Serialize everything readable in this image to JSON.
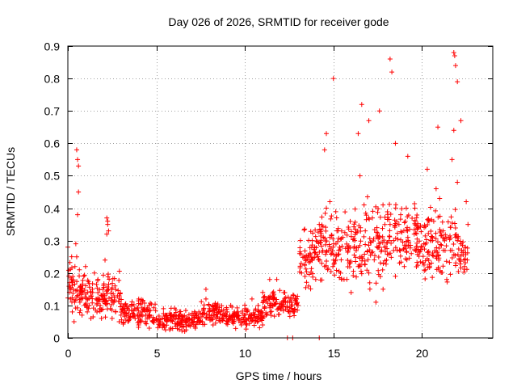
{
  "chart_data": {
    "type": "scatter",
    "title": "Day 026 of 2026, SRMTID for receiver gode",
    "xlabel": "GPS time / hours",
    "ylabel": "SRMTID / TECUs",
    "xlim": [
      0,
      24
    ],
    "ylim": [
      0,
      0.9
    ],
    "xticks": [
      0,
      5,
      10,
      15,
      20
    ],
    "yticks": [
      0,
      0.1,
      0.2,
      0.3,
      0.4,
      0.5,
      0.6,
      0.7,
      0.8,
      0.9
    ],
    "xtick_labels": [
      "0",
      "5",
      "10",
      "15",
      "20"
    ],
    "ytick_labels": [
      "0",
      "0.1",
      "0.2",
      "0.3",
      "0.4",
      "0.5",
      "0.6",
      "0.7",
      "0.8",
      "0.9"
    ],
    "grid": true,
    "marker": "+",
    "color": "#ff0000",
    "series": [
      {
        "name": "SRMTID",
        "x": [
          0.0,
          0.1,
          0.15,
          0.2,
          0.25,
          0.3,
          0.35,
          0.4,
          0.45,
          0.5,
          0.55,
          0.6,
          0.65,
          0.7,
          0.75,
          0.8,
          0.85,
          0.9,
          0.95,
          1.0,
          1.1,
          1.2,
          1.3,
          1.4,
          1.5,
          1.6,
          1.7,
          1.8,
          1.9,
          2.0,
          2.1,
          2.2,
          2.25,
          2.3,
          2.4,
          2.5,
          2.6,
          2.7,
          2.8,
          2.9,
          3.0,
          3.2,
          3.4,
          3.6,
          3.8,
          4.0,
          4.2,
          4.4,
          4.6,
          4.8,
          5.0,
          5.2,
          5.4,
          5.6,
          5.8,
          6.0,
          6.2,
          6.4,
          6.6,
          6.8,
          7.0,
          7.2,
          7.4,
          7.6,
          7.8,
          8.0,
          8.2,
          8.4,
          8.6,
          8.8,
          9.0,
          9.2,
          9.4,
          9.6,
          9.8,
          10.0,
          10.2,
          10.4,
          10.6,
          10.8,
          11.0,
          11.2,
          11.4,
          11.6,
          11.8,
          12.0,
          12.2,
          12.4,
          12.6,
          12.8,
          13.0,
          13.2,
          13.4,
          13.6,
          13.8,
          14.0,
          14.2,
          14.4,
          14.5,
          14.6,
          14.8,
          15.0,
          15.2,
          15.4,
          15.6,
          15.8,
          16.0,
          16.2,
          16.4,
          16.5,
          16.6,
          16.8,
          17.0,
          17.2,
          17.4,
          17.6,
          17.8,
          18.0,
          18.2,
          18.4,
          18.5,
          18.6,
          18.8,
          19.0,
          19.2,
          19.4,
          19.6,
          19.8,
          20.0,
          20.2,
          20.4,
          20.6,
          20.8,
          21.0,
          21.2,
          21.4,
          21.6,
          21.7,
          21.8,
          21.9,
          22.0,
          22.2,
          22.4,
          22.6,
          0.5,
          0.55,
          0.6,
          2.2,
          2.25,
          2.3,
          7.8,
          11.4,
          12.4,
          12.7,
          14.2,
          14.5,
          14.6,
          14.8,
          15.0,
          16.4,
          16.6,
          17.0,
          17.6,
          18.2,
          18.3,
          18.5,
          18.7,
          19.2,
          20.3,
          20.8,
          20.9,
          21.8,
          21.85,
          21.9,
          22.0,
          22.2,
          22.5
        ],
        "y": [
          0.28,
          0.17,
          0.12,
          0.18,
          0.08,
          0.15,
          0.05,
          0.22,
          0.29,
          0.25,
          0.38,
          0.45,
          0.21,
          0.16,
          0.12,
          0.07,
          0.14,
          0.19,
          0.1,
          0.22,
          0.08,
          0.1,
          0.06,
          0.14,
          0.2,
          0.12,
          0.18,
          0.09,
          0.06,
          0.12,
          0.24,
          0.32,
          0.36,
          0.15,
          0.09,
          0.06,
          0.11,
          0.08,
          0.13,
          0.05,
          0.07,
          0.09,
          0.05,
          0.1,
          0.06,
          0.04,
          0.08,
          0.07,
          0.03,
          0.05,
          0.06,
          0.04,
          0.09,
          0.05,
          0.03,
          0.07,
          0.04,
          0.05,
          0.02,
          0.04,
          0.06,
          0.03,
          0.08,
          0.05,
          0.12,
          0.07,
          0.04,
          0.09,
          0.05,
          0.06,
          0.08,
          0.1,
          0.05,
          0.07,
          0.04,
          0.09,
          0.06,
          0.12,
          0.05,
          0.08,
          0.04,
          0.07,
          0.1,
          0.13,
          0.18,
          0.09,
          0.14,
          0.11,
          0.12,
          0.08,
          0.1,
          0.2,
          0.25,
          0.16,
          0.3,
          0.18,
          0.35,
          0.27,
          0.22,
          0.4,
          0.31,
          0.24,
          0.33,
          0.2,
          0.18,
          0.28,
          0.14,
          0.3,
          0.22,
          0.5,
          0.25,
          0.33,
          0.2,
          0.37,
          0.11,
          0.28,
          0.41,
          0.24,
          0.35,
          0.3,
          0.19,
          0.27,
          0.38,
          0.22,
          0.31,
          0.26,
          0.4,
          0.34,
          0.28,
          0.21,
          0.36,
          0.3,
          0.25,
          0.43,
          0.33,
          0.18,
          0.27,
          0.55,
          0.64,
          0.31,
          0.48,
          0.29,
          0.22,
          0.35,
          0.58,
          0.55,
          0.53,
          0.37,
          0.35,
          0.33,
          0.15,
          0.18,
          0.0,
          0.0,
          0.0,
          0.58,
          0.63,
          0.42,
          0.8,
          0.63,
          0.72,
          0.67,
          0.7,
          0.86,
          0.82,
          0.6,
          0.35,
          0.56,
          0.52,
          0.46,
          0.65,
          0.88,
          0.87,
          0.84,
          0.79,
          0.67,
          0.42
        ],
        "density_model": [
          {
            "x0": 0.0,
            "x1": 0.5,
            "y_lo": 0.05,
            "y_hi": 0.27
          },
          {
            "x0": 0.5,
            "x1": 1.0,
            "y_lo": 0.06,
            "y_hi": 0.24
          },
          {
            "x0": 1.0,
            "x1": 2.0,
            "y_lo": 0.05,
            "y_hi": 0.2
          },
          {
            "x0": 2.0,
            "x1": 3.0,
            "y_lo": 0.04,
            "y_hi": 0.22
          },
          {
            "x0": 3.0,
            "x1": 5.0,
            "y_lo": 0.02,
            "y_hi": 0.13
          },
          {
            "x0": 5.0,
            "x1": 7.5,
            "y_lo": 0.01,
            "y_hi": 0.1
          },
          {
            "x0": 7.5,
            "x1": 9.0,
            "y_lo": 0.02,
            "y_hi": 0.14
          },
          {
            "x0": 9.0,
            "x1": 11.0,
            "y_lo": 0.02,
            "y_hi": 0.11
          },
          {
            "x0": 11.0,
            "x1": 12.0,
            "y_lo": 0.04,
            "y_hi": 0.17
          },
          {
            "x0": 12.0,
            "x1": 13.0,
            "y_lo": 0.06,
            "y_hi": 0.15
          },
          {
            "x0": 13.0,
            "x1": 14.0,
            "y_lo": 0.12,
            "y_hi": 0.38
          },
          {
            "x0": 14.0,
            "x1": 16.0,
            "y_lo": 0.14,
            "y_hi": 0.42
          },
          {
            "x0": 16.0,
            "x1": 18.0,
            "y_lo": 0.1,
            "y_hi": 0.46
          },
          {
            "x0": 18.0,
            "x1": 20.0,
            "y_lo": 0.15,
            "y_hi": 0.45
          },
          {
            "x0": 20.0,
            "x1": 22.0,
            "y_lo": 0.12,
            "y_hi": 0.45
          },
          {
            "x0": 22.0,
            "x1": 22.6,
            "y_lo": 0.16,
            "y_hi": 0.35
          }
        ]
      }
    ]
  }
}
